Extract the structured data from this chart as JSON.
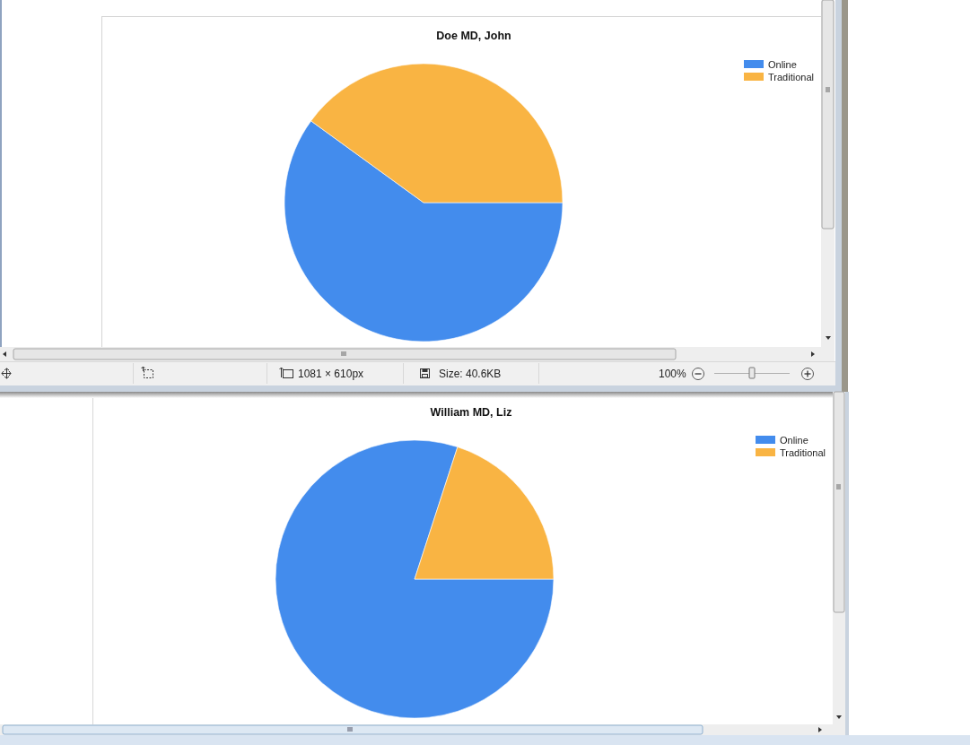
{
  "chart_data": [
    {
      "type": "pie",
      "title": "Doe MD, John",
      "categories": [
        "Online",
        "Traditional"
      ],
      "values": [
        60,
        40
      ],
      "colors": [
        "#438ced",
        "#f9b443"
      ],
      "legend": "top right",
      "annotations": [
        "1081 × 610px",
        "Size: 40.6KB",
        "100%"
      ]
    },
    {
      "type": "pie",
      "title": "William MD, Liz",
      "categories": [
        "Online",
        "Traditional"
      ],
      "values": [
        80,
        20
      ],
      "colors": [
        "#438ced",
        "#f9b443"
      ],
      "legend": "top right"
    }
  ]
}
